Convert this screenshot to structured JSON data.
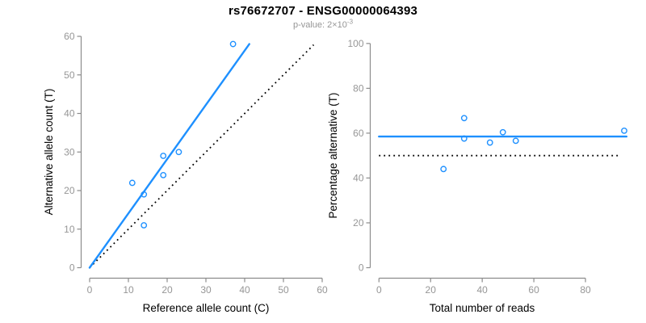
{
  "figure": {
    "title": "rs76672707 - ENSG00000064393",
    "subtitle_main": "p-value: 2×10",
    "subtitle_exponent": "-3"
  },
  "style": {
    "accent_blue": "#1E90FF",
    "axis_line_gray": "#8c8c8c",
    "tick_label_gray": "#969696",
    "label_black": "#000000",
    "reference_line_black": "#000000"
  },
  "chart_data": [
    {
      "id": "allele-counts-scatter",
      "type": "scatter",
      "xlabel": "Reference allele count (C)",
      "ylabel": "Alternative allele count (T)",
      "xlim": [
        0,
        60
      ],
      "ylim": [
        0,
        60
      ],
      "grid": false,
      "xticks": [
        0,
        10,
        20,
        30,
        40,
        50,
        60
      ],
      "yticks": [
        0,
        10,
        20,
        30,
        40,
        50,
        60
      ],
      "points": [
        [
          11,
          22
        ],
        [
          14,
          19
        ],
        [
          14,
          11
        ],
        [
          19,
          24
        ],
        [
          19,
          29
        ],
        [
          23,
          30
        ],
        [
          37,
          58
        ]
      ],
      "fit_line": {
        "style": "solid",
        "x1": 0,
        "y1": 0,
        "x2": 41.2,
        "y2": 58
      },
      "reference_line": {
        "style": "dotted",
        "x1": 0,
        "y1": 0,
        "x2": 57.8,
        "y2": 57.8
      }
    },
    {
      "id": "percentage-alternative-scatter",
      "type": "scatter",
      "xlabel": "Total number of reads",
      "ylabel": "Percentage alternative (T)",
      "xlim": [
        0,
        96
      ],
      "ylim": [
        0,
        100
      ],
      "grid": false,
      "xticks": [
        0,
        20,
        40,
        60,
        80
      ],
      "yticks": [
        0,
        20,
        40,
        60,
        80,
        100
      ],
      "points": [
        [
          25,
          44
        ],
        [
          33,
          57.6
        ],
        [
          33,
          66.7
        ],
        [
          43,
          55.8
        ],
        [
          48,
          60.4
        ],
        [
          53,
          56.6
        ],
        [
          95,
          61.1
        ]
      ],
      "fit_line": {
        "style": "solid",
        "x1": 0,
        "y1": 58.5,
        "x2": 95.9,
        "y2": 58.5
      },
      "reference_line": {
        "style": "dotted",
        "x1": 0,
        "y1": 50,
        "x2": 93.6,
        "y2": 50
      }
    }
  ]
}
